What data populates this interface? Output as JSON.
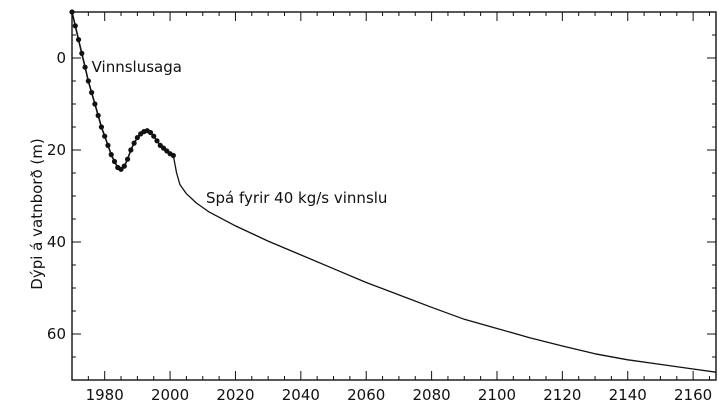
{
  "chart_data": {
    "type": "line",
    "title": "",
    "xlabel": "",
    "ylabel": "Dýpi á vatnborð (m)",
    "xlim": [
      1970,
      2167
    ],
    "ylim": [
      -10,
      70
    ],
    "y_inverted": true,
    "grid": false,
    "x_ticks": [
      1980,
      2000,
      2020,
      2040,
      2060,
      2080,
      2100,
      2120,
      2140,
      2160
    ],
    "y_ticks": [
      0,
      20,
      40,
      60
    ],
    "x_tick_labels": [
      "1980",
      "2000",
      "2020",
      "2040",
      "2060",
      "2080",
      "2100",
      "2120",
      "2140",
      "2160"
    ],
    "y_tick_labels": [
      "0",
      "20",
      "40",
      "60"
    ],
    "series": [
      {
        "name": "Vinnslusaga",
        "marker": "dot",
        "x": [
          1970,
          1971,
          1972,
          1973,
          1974,
          1975,
          1976,
          1977,
          1978,
          1979,
          1980,
          1981,
          1982,
          1983,
          1984,
          1985,
          1986,
          1987,
          1988,
          1989,
          1990,
          1991,
          1992,
          1993,
          1994,
          1995,
          1996,
          1997,
          1998,
          1999,
          2000,
          2001
        ],
        "y": [
          -10,
          -7,
          -4,
          -1,
          2,
          5,
          7.5,
          10,
          12.5,
          15,
          17,
          19,
          21,
          22.5,
          23.8,
          24.2,
          23.5,
          22,
          20,
          18.5,
          17.3,
          16.5,
          16,
          15.8,
          16.2,
          17,
          18,
          19,
          19.6,
          20.2,
          20.8,
          21.2
        ]
      },
      {
        "name": "Spá fyrir 40 kg/s vinnslu",
        "marker": "none",
        "x": [
          2001,
          2002,
          2003,
          2005,
          2008,
          2012,
          2020,
          2030,
          2040,
          2050,
          2060,
          2070,
          2080,
          2090,
          2100,
          2110,
          2120,
          2130,
          2140,
          2150,
          2160,
          2167
        ],
        "y": [
          21.2,
          25,
          27.5,
          29.5,
          31.5,
          33.5,
          36.5,
          39.8,
          42.8,
          45.8,
          48.8,
          51.5,
          54.2,
          56.8,
          58.8,
          60.8,
          62.6,
          64.3,
          65.6,
          66.6,
          67.6,
          68.3
        ]
      }
    ],
    "annotations": [
      {
        "text": "Vinnslusaga",
        "x": 1976,
        "y": 3
      },
      {
        "text": "Spá fyrir 40 kg/s vinnslu",
        "x": 2011,
        "y": 31.5
      }
    ]
  }
}
